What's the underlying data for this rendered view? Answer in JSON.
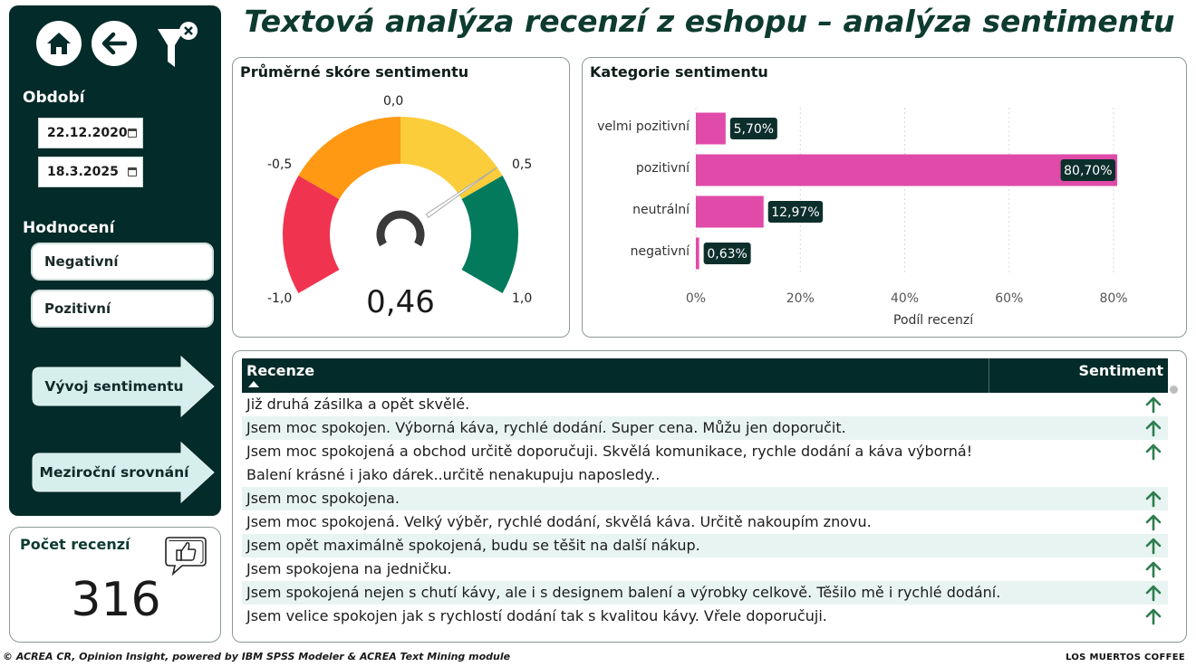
{
  "header": {
    "title": "Textová analýza recenzí z eshopu – analýza sentimentu"
  },
  "sidebar": {
    "icons": {
      "home": "home-icon",
      "back": "back-arrow-icon",
      "filter": "clear-filter-icon"
    },
    "period_label": "Období",
    "date_from": "22.12.2020",
    "date_to": "18.3.2025",
    "rating_label": "Hodnocení",
    "rating_options": [
      "Negativní",
      "Pozitivní"
    ],
    "nav_buttons": [
      "Vývoj sentimentu",
      "Meziroční srovnání"
    ]
  },
  "count_card": {
    "title": "Počet recenzí",
    "value": "316",
    "icon": "like-speech-bubble-icon"
  },
  "gauge": {
    "title": "Průměrné skóre sentimentu",
    "value": 0.46,
    "value_text": "0,46",
    "min_label": "-1,0",
    "max_label": "1,0",
    "labels": {
      "m05": "-0,5",
      "zero": "0,0",
      "p05": "0,5"
    },
    "colors": {
      "red": "#f0344f",
      "orange": "#ff9813",
      "yellow": "#fccd3b",
      "green": "#037a5c"
    }
  },
  "chart_data": {
    "type": "bar",
    "title": "Kategorie sentimentu",
    "categories": [
      "velmi pozitivní",
      "pozitivní",
      "neutrální",
      "negativní"
    ],
    "values": [
      5.7,
      80.7,
      12.97,
      0.63
    ],
    "value_labels": [
      "5,70%",
      "80,70%",
      "12,97%",
      "0,63%"
    ],
    "xlabel": "Podíl recenzí",
    "xticks": [
      "0%",
      "20%",
      "40%",
      "60%",
      "80%"
    ],
    "xlim": [
      0,
      85
    ],
    "orientation": "horizontal",
    "color": "#e04aa8",
    "grid": true
  },
  "table": {
    "headers": {
      "review": "Recenze",
      "sentiment": "Sentiment"
    },
    "rows": [
      {
        "text": "Již druhá zásilka a opět skvělé.",
        "sentiment": "up-arrow-icon"
      },
      {
        "text": "Jsem moc spokojen. Výborná káva, rychlé dodání. Super cena. Můžu jen doporučit.",
        "sentiment": "up-arrow-icon"
      },
      {
        "text": "Jsem moc spokojená a obchod určitě doporučuji. Skvělá komunikace, rychle dodání a káva výborná! Balení krásné i jako dárek..určitě nenakupuju naposledy..",
        "line1": "Jsem moc spokojená a obchod určitě doporučuji. Skvělá komunikace, rychle dodání a káva výborná!",
        "line2": "Balení krásné i jako dárek..určitě nenakupuju naposledy..",
        "sentiment": "up-arrow-icon"
      },
      {
        "text": "Jsem moc spokojena.",
        "sentiment": "up-arrow-icon"
      },
      {
        "text": "Jsem moc spokojená. Velký výběr, rychlé dodání, skvělá káva. Určitě nakoupím znovu.",
        "sentiment": "up-arrow-icon"
      },
      {
        "text": "Jsem opět maximálně spokojená, budu se těšit na další nákup.",
        "sentiment": "up-arrow-icon"
      },
      {
        "text": "Jsem spokojena na jedničku.",
        "sentiment": "up-arrow-icon"
      },
      {
        "text": "Jsem spokojená nejen s chutí kávy, ale i s designem balení a výrobky celkově. Těšilo mě i rychlé dodání.",
        "sentiment": "up-arrow-icon"
      },
      {
        "text": "Jsem velice spokojen jak s rychlostí dodání tak s kvalitou kávy. Vřele doporučuji.",
        "sentiment": "up-arrow-icon"
      }
    ]
  },
  "footer": {
    "credit": "© ACREA CR, Opinion Insight, powered by IBM SPSS Modeler & ACREA Text Mining module",
    "brand": "LOS MUERTOS  COFFEE"
  }
}
